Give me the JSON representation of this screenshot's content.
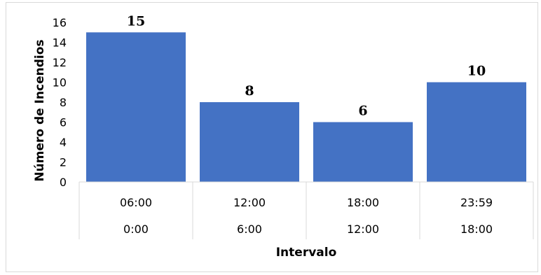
{
  "chart_data": {
    "type": "bar",
    "title": "",
    "xlabel": "Intervalo",
    "ylabel": "Número de Incendios",
    "ylim": [
      0,
      16
    ],
    "yticks": [
      0,
      2,
      4,
      6,
      8,
      10,
      12,
      14,
      16
    ],
    "categories": [
      {
        "upper": "06:00",
        "lower": "0:00"
      },
      {
        "upper": "12:00",
        "lower": "6:00"
      },
      {
        "upper": "18:00",
        "lower": "12:00"
      },
      {
        "upper": "23:59",
        "lower": "18:00"
      }
    ],
    "values": [
      15,
      8,
      6,
      10
    ],
    "bar_color": "#4472C4",
    "grid": false,
    "legend": "none"
  }
}
